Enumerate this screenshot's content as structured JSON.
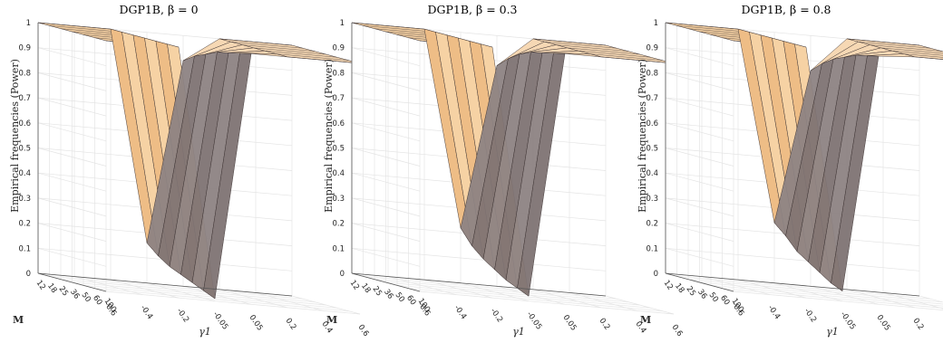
{
  "chart_data": [
    {
      "type": "surface3d",
      "title": "DGP1B, β = 0",
      "zlabel": "Empirical frequencies (Power)",
      "xlabel": "M",
      "ylabel": "γ1",
      "z_ticks": [
        "0",
        "0.1",
        "0.2",
        "0.3",
        "0.4",
        "0.5",
        "0.6",
        "0.7",
        "0.8",
        "0.9",
        "1"
      ],
      "zlim": [
        0,
        1
      ],
      "M_ticks": [
        "12",
        "18",
        "25",
        "36",
        "50",
        "60",
        "100"
      ],
      "gamma_ticks": [
        "-0.6",
        "-0.4",
        "-0.2",
        "-0.05",
        "0.05",
        "0.2",
        "0.4",
        "0.6"
      ],
      "series": [
        {
          "name": "light",
          "gamma": -0.05,
          "power_by_M": [
            0.16,
            0.12,
            0.09,
            0.07,
            0.05,
            0.03,
            0.01
          ]
        },
        {
          "name": "dark",
          "gamma": 0.05,
          "power_by_M": [
            0.9,
            0.93,
            0.95,
            0.97,
            0.98,
            0.99,
            1.0
          ]
        }
      ]
    },
    {
      "type": "surface3d",
      "title": "DGP1B, β = 0.3",
      "zlabel": "Empirical frequencies (Power)",
      "xlabel": "M",
      "ylabel": "γ1",
      "z_ticks": [
        "0",
        "0.1",
        "0.2",
        "0.3",
        "0.4",
        "0.5",
        "0.6",
        "0.7",
        "0.8",
        "0.9",
        "1"
      ],
      "zlim": [
        0,
        1
      ],
      "M_ticks": [
        "12",
        "18",
        "25",
        "36",
        "50",
        "60",
        "100"
      ],
      "gamma_ticks": [
        "-0.6",
        "-0.4",
        "-0.2",
        "-0.05",
        "0.05",
        "0.2",
        "0.4",
        "0.6"
      ],
      "series": [
        {
          "name": "light",
          "gamma": -0.05,
          "power_by_M": [
            0.22,
            0.16,
            0.12,
            0.09,
            0.06,
            0.04,
            0.02
          ]
        },
        {
          "name": "dark",
          "gamma": 0.05,
          "power_by_M": [
            0.88,
            0.92,
            0.95,
            0.97,
            0.98,
            0.99,
            1.0
          ]
        }
      ]
    },
    {
      "type": "surface3d",
      "title": "DGP1B, β = 0.8",
      "zlabel": "Empirical frequencies (Power)",
      "xlabel": "M",
      "ylabel": "γ1",
      "z_ticks": [
        "0",
        "0.1",
        "0.2",
        "0.3",
        "0.4",
        "0.5",
        "0.6",
        "0.7",
        "0.8",
        "0.9",
        "1"
      ],
      "zlim": [
        0,
        1
      ],
      "M_ticks": [
        "12",
        "18",
        "25",
        "36",
        "50",
        "60",
        "100"
      ],
      "gamma_ticks": [
        "-0.6",
        "-0.4",
        "-0.2",
        "-0.05",
        "0.05",
        "0.2",
        "0.4",
        "0.6"
      ],
      "series": [
        {
          "name": "light",
          "gamma": -0.05,
          "power_by_M": [
            0.24,
            0.2,
            0.15,
            0.12,
            0.09,
            0.06,
            0.04
          ]
        },
        {
          "name": "dark",
          "gamma": 0.05,
          "power_by_M": [
            0.86,
            0.9,
            0.93,
            0.95,
            0.97,
            0.98,
            0.99
          ]
        }
      ]
    }
  ],
  "colors": {
    "light_face": "#f6d2a4",
    "light_face_far": "#eebd86",
    "light_top": "#f3cfa2",
    "dark_face": "#7e7373",
    "dark_face_near": "#8d8383",
    "dark_top": "#f6d8b4",
    "edge": "#3a3030",
    "grid": "#e4e4e4",
    "axis": "#555555"
  }
}
